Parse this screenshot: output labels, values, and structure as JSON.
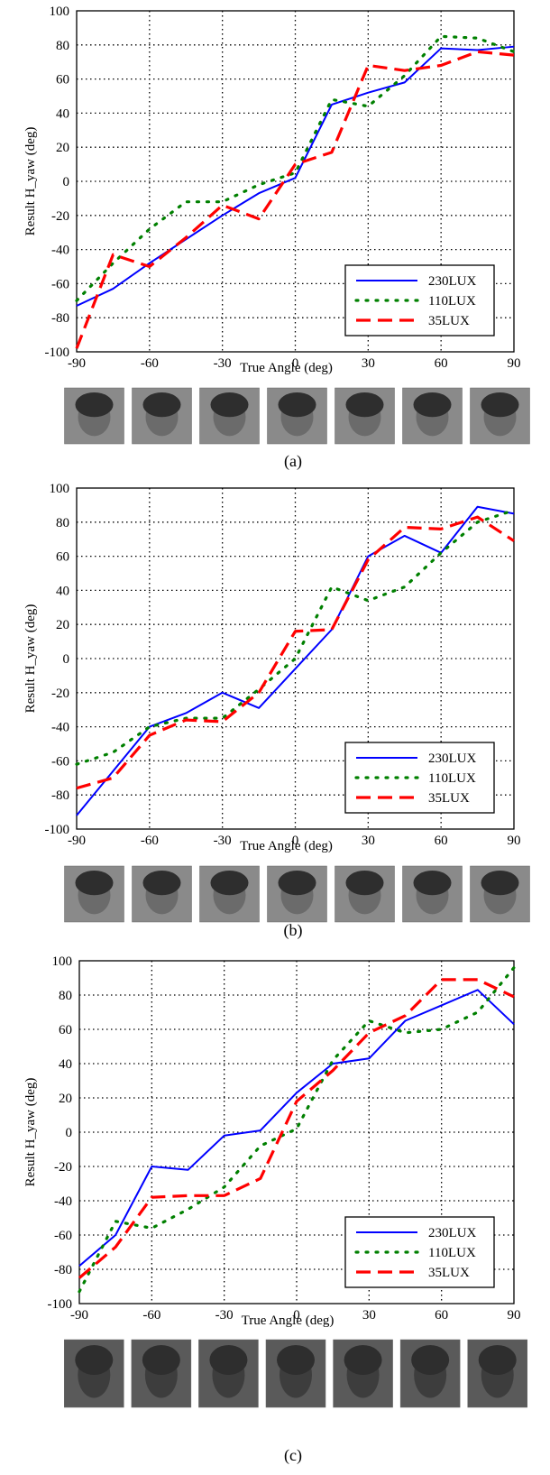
{
  "figure": {
    "legend_labels": [
      "230LUX",
      "110LUX",
      "35LUX"
    ],
    "series_colors": [
      "#0000ff",
      "#008000",
      "#ff0000"
    ],
    "series_styles": [
      "solid",
      "dotted",
      "dashed"
    ],
    "legend_position": "bottom-right"
  },
  "chart_data": [
    {
      "type": "line",
      "caption": "(a)",
      "xlabel": "True Angle (deg)",
      "ylabel": "Result H_yaw (deg)",
      "xlim": [
        -90,
        90
      ],
      "ylim": [
        -100,
        100
      ],
      "xticks": [
        -90,
        -60,
        -30,
        0,
        30,
        60,
        90
      ],
      "yticks": [
        -100,
        -80,
        -60,
        -40,
        -20,
        0,
        20,
        40,
        60,
        80,
        100
      ],
      "grid": true,
      "x": [
        -90,
        -75,
        -60,
        -45,
        -30,
        -15,
        0,
        15,
        30,
        45,
        60,
        75,
        90
      ],
      "series": [
        {
          "name": "230LUX",
          "values": [
            -73,
            -63,
            -48,
            -34,
            -20,
            -7,
            2,
            45,
            52,
            58,
            78,
            77,
            79
          ]
        },
        {
          "name": "110LUX",
          "values": [
            -70,
            -48,
            -28,
            -12,
            -12,
            -2,
            5,
            48,
            44,
            62,
            85,
            84,
            76
          ]
        },
        {
          "name": "35LUX",
          "values": [
            -98,
            -43,
            -50,
            -33,
            -14,
            -22,
            10,
            17,
            68,
            65,
            68,
            76,
            74
          ]
        }
      ],
      "thumbnails": 7
    },
    {
      "type": "line",
      "caption": "(b)",
      "xlabel": "True Angle (deg)",
      "ylabel": "Result H_yaw (deg)",
      "xlim": [
        -90,
        90
      ],
      "ylim": [
        -100,
        100
      ],
      "xticks": [
        -90,
        -60,
        -30,
        0,
        30,
        60,
        90
      ],
      "yticks": [
        -100,
        -80,
        -60,
        -40,
        -20,
        0,
        20,
        40,
        60,
        80,
        100
      ],
      "grid": true,
      "x": [
        -90,
        -75,
        -60,
        -45,
        -30,
        -15,
        0,
        15,
        30,
        45,
        60,
        75,
        90
      ],
      "series": [
        {
          "name": "230LUX",
          "values": [
            -92,
            -66,
            -40,
            -32,
            -20,
            -29,
            -6,
            17,
            60,
            72,
            62,
            89,
            85
          ]
        },
        {
          "name": "110LUX",
          "values": [
            -62,
            -55,
            -40,
            -35,
            -35,
            -18,
            0,
            42,
            34,
            42,
            62,
            80,
            87
          ]
        },
        {
          "name": "35LUX",
          "values": [
            -76,
            -70,
            -45,
            -36,
            -37,
            -20,
            16,
            17,
            58,
            77,
            76,
            83,
            69
          ]
        }
      ],
      "thumbnails": 7
    },
    {
      "type": "line",
      "caption": "(c)",
      "xlabel": "True Angle (deg)",
      "ylabel": "Result H_yaw (deg)",
      "xlim": [
        -90,
        90
      ],
      "ylim": [
        -100,
        100
      ],
      "xticks": [
        -90,
        -60,
        -30,
        0,
        30,
        60,
        90
      ],
      "yticks": [
        -100,
        -80,
        -60,
        -40,
        -20,
        0,
        20,
        40,
        60,
        80,
        100
      ],
      "grid": true,
      "x": [
        -90,
        -75,
        -60,
        -45,
        -30,
        -15,
        0,
        15,
        30,
        45,
        60,
        75,
        90
      ],
      "series": [
        {
          "name": "230LUX",
          "values": [
            -78,
            -60,
            -20,
            -22,
            -2,
            1,
            23,
            40,
            43,
            65,
            74,
            83,
            63
          ]
        },
        {
          "name": "110LUX",
          "values": [
            -93,
            -52,
            -56,
            -45,
            -32,
            -8,
            2,
            42,
            65,
            58,
            60,
            70,
            96
          ]
        },
        {
          "name": "35LUX",
          "values": [
            -85,
            -67,
            -38,
            -37,
            -37,
            -27,
            18,
            36,
            58,
            68,
            89,
            89,
            79
          ]
        }
      ],
      "thumbnails": 7
    }
  ]
}
